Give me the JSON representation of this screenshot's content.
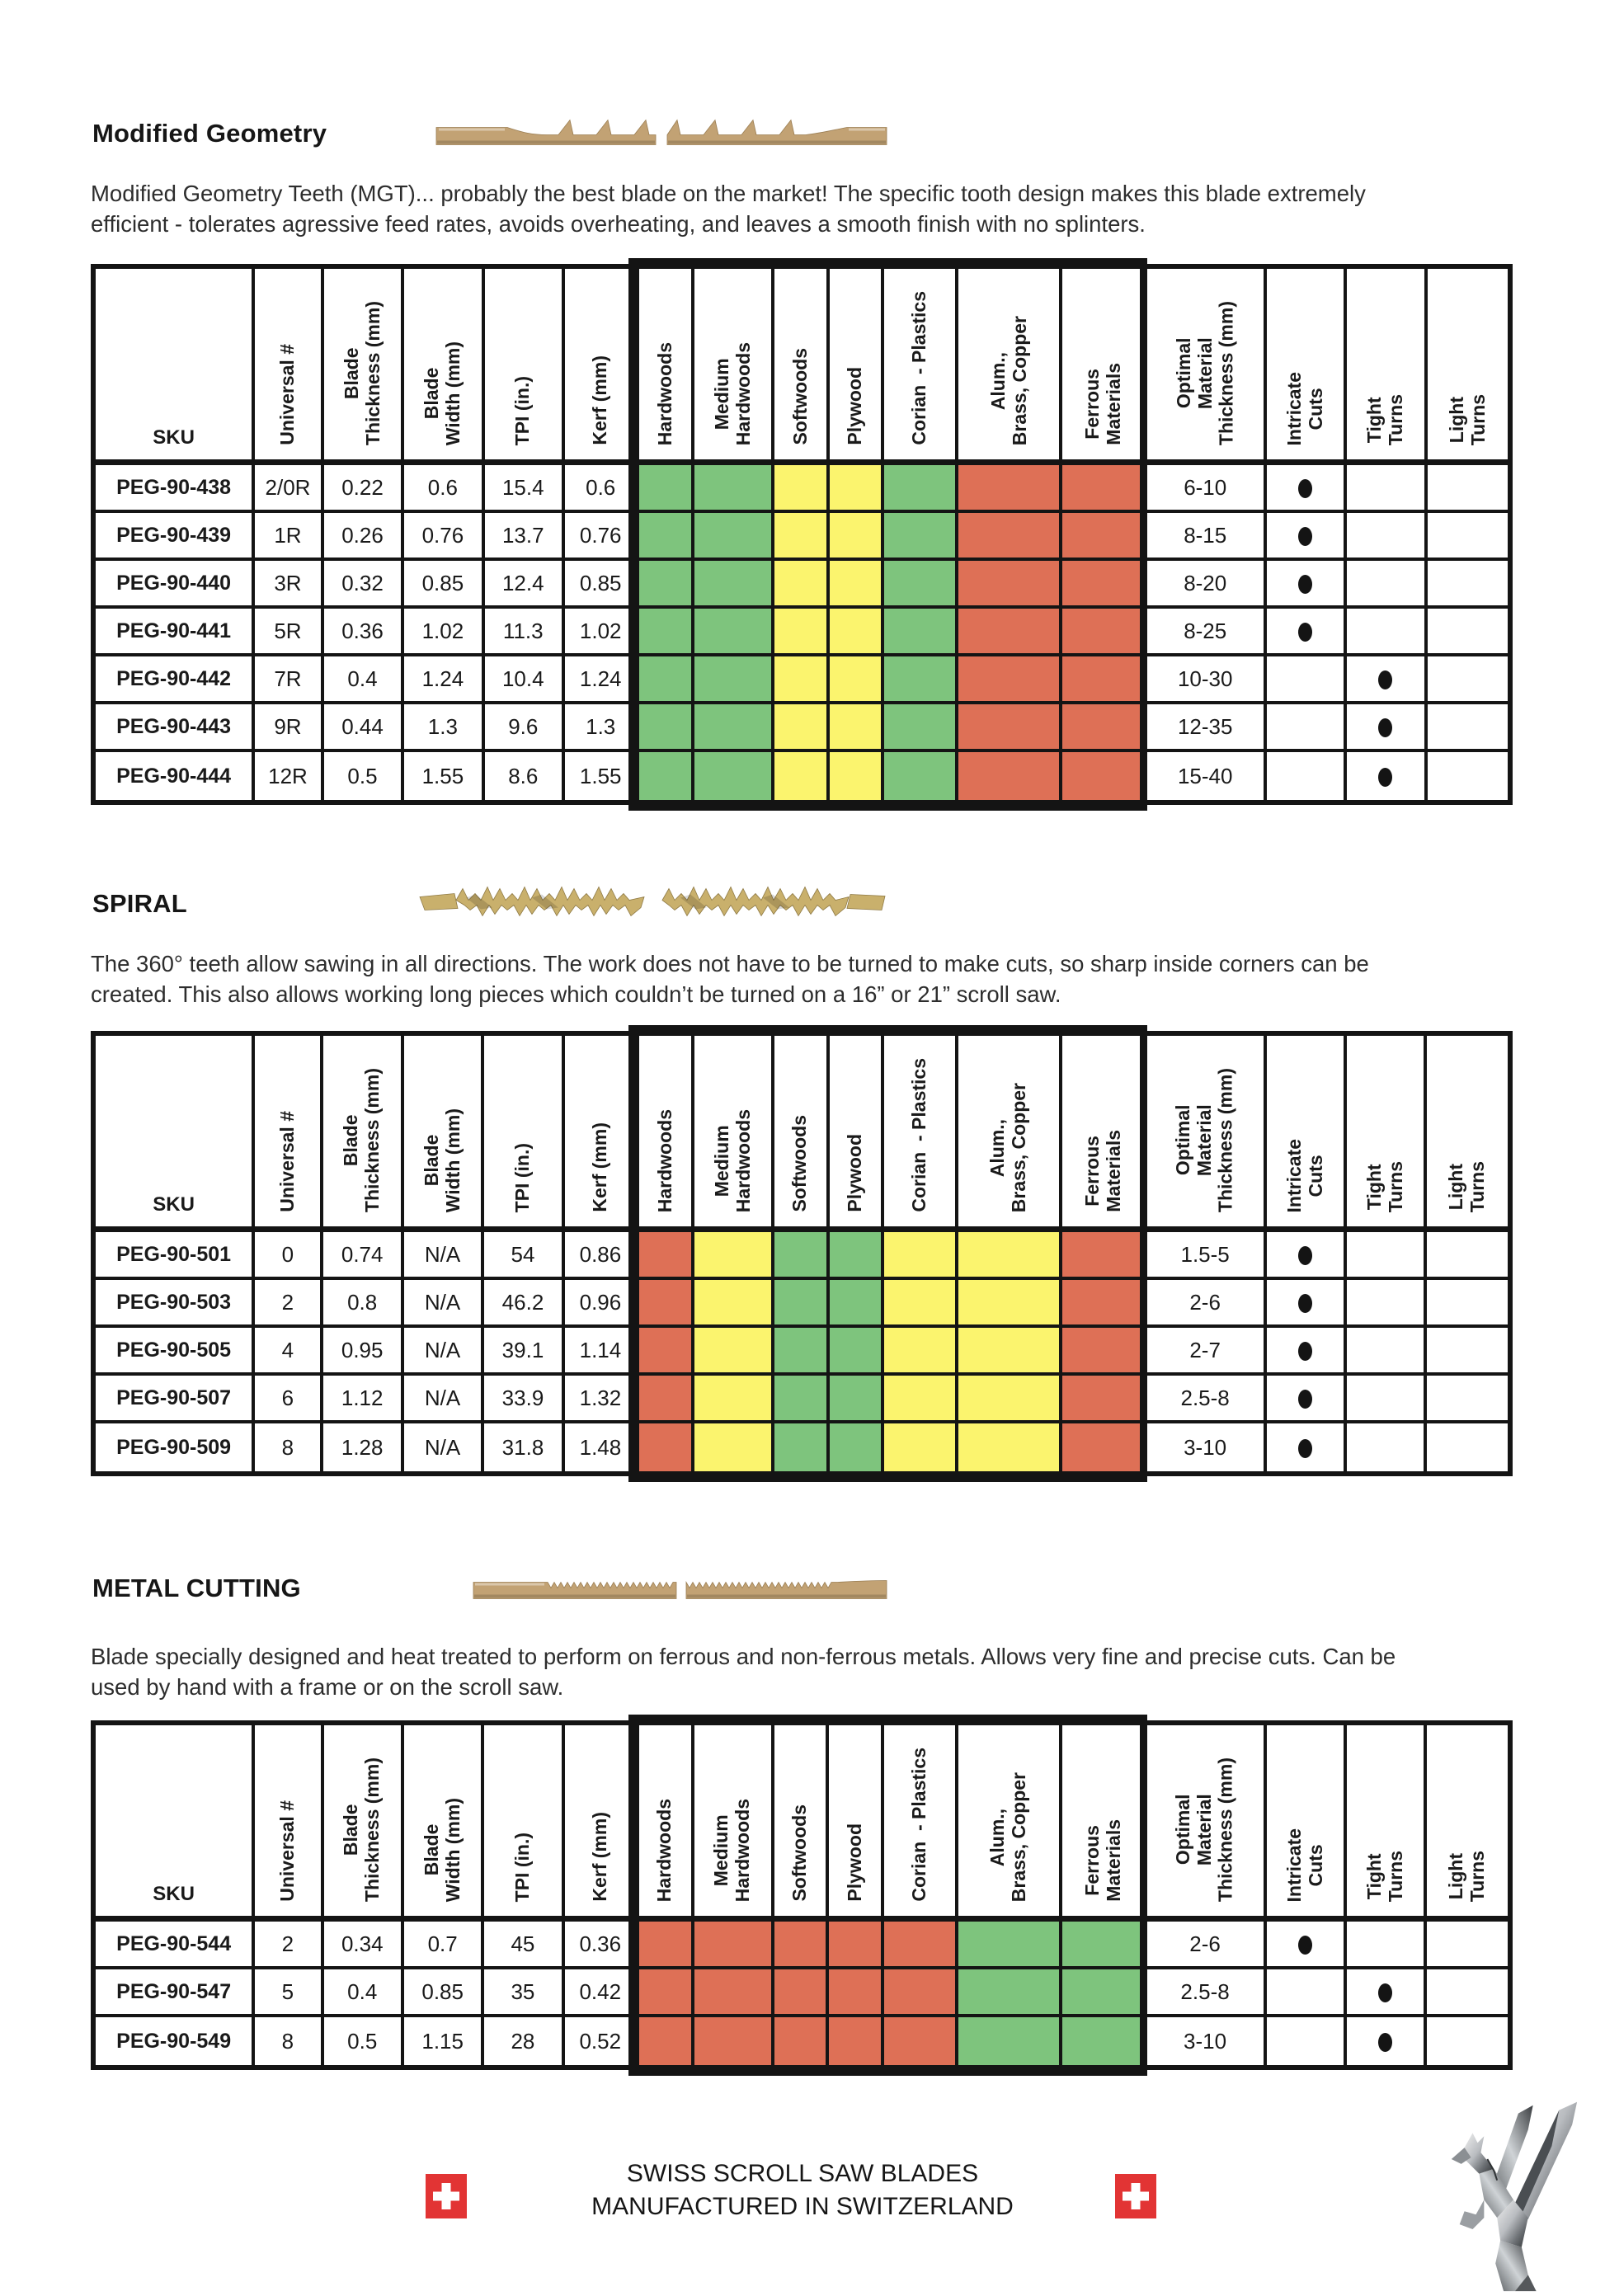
{
  "colors": {
    "green": "#7ec47d",
    "yellow": "#fbf46e",
    "red": "#de7056",
    "flag_red": "#e23434",
    "blade_tan": "#c2a274",
    "blade_gold": "#c9b06c"
  },
  "columns": [
    {
      "key": "sku",
      "label": "SKU"
    },
    {
      "key": "universal",
      "label": "Universal #"
    },
    {
      "key": "thickness",
      "label": "Blade\nThickness (mm)"
    },
    {
      "key": "width",
      "label": "Blade\nWidth (mm)"
    },
    {
      "key": "tpi",
      "label": "TPI (in.)"
    },
    {
      "key": "kerf",
      "label": "Kerf (mm)"
    },
    {
      "key": "m0",
      "label": "Hardwoods"
    },
    {
      "key": "m1",
      "label": "Medium\nHardwoods"
    },
    {
      "key": "m2",
      "label": "Softwoods"
    },
    {
      "key": "m3",
      "label": "Plywood"
    },
    {
      "key": "m4",
      "label": "Corian  - Plastics"
    },
    {
      "key": "m5",
      "label": "Alum.,\nBrass, Copper"
    },
    {
      "key": "m6",
      "label": "Ferrous\nMaterials"
    },
    {
      "key": "optimal",
      "label": "Optimal\nMaterial\nThickness (mm)"
    },
    {
      "key": "intricate",
      "label": "Intricate\nCuts"
    },
    {
      "key": "tight",
      "label": "Tight\nTurns"
    },
    {
      "key": "light",
      "label": "Light\nTurns"
    }
  ],
  "sections": [
    {
      "id": "modified-geometry",
      "title": "Modified Geometry",
      "blade": "mgt",
      "description_lines": [
        "Modified Geometry Teeth (MGT)... probably the best blade on the market! The specific tooth design makes this blade extremely",
        "efficient - tolerates agressive feed rates, avoids overheating, and leaves a smooth finish with no splinters."
      ],
      "materials": [
        "green",
        "green",
        "yellow",
        "yellow",
        "green",
        "red",
        "red"
      ],
      "rows": [
        {
          "sku": "PEG-90-438",
          "universal": "2/0R",
          "thickness": "0.22",
          "width": "0.6",
          "tpi": "15.4",
          "kerf": "0.6",
          "optimal": "6-10",
          "intricate": true,
          "tight": false,
          "light": false
        },
        {
          "sku": "PEG-90-439",
          "universal": "1R",
          "thickness": "0.26",
          "width": "0.76",
          "tpi": "13.7",
          "kerf": "0.76",
          "optimal": "8-15",
          "intricate": true,
          "tight": false,
          "light": false
        },
        {
          "sku": "PEG-90-440",
          "universal": "3R",
          "thickness": "0.32",
          "width": "0.85",
          "tpi": "12.4",
          "kerf": "0.85",
          "optimal": "8-20",
          "intricate": true,
          "tight": false,
          "light": false
        },
        {
          "sku": "PEG-90-441",
          "universal": "5R",
          "thickness": "0.36",
          "width": "1.02",
          "tpi": "11.3",
          "kerf": "1.02",
          "optimal": "8-25",
          "intricate": true,
          "tight": false,
          "light": false
        },
        {
          "sku": "PEG-90-442",
          "universal": "7R",
          "thickness": "0.4",
          "width": "1.24",
          "tpi": "10.4",
          "kerf": "1.24",
          "optimal": "10-30",
          "intricate": false,
          "tight": true,
          "light": false
        },
        {
          "sku": "PEG-90-443",
          "universal": "9R",
          "thickness": "0.44",
          "width": "1.3",
          "tpi": "9.6",
          "kerf": "1.3",
          "optimal": "12-35",
          "intricate": false,
          "tight": true,
          "light": false
        },
        {
          "sku": "PEG-90-444",
          "universal": "12R",
          "thickness": "0.5",
          "width": "1.55",
          "tpi": "8.6",
          "kerf": "1.55",
          "optimal": "15-40",
          "intricate": false,
          "tight": true,
          "light": false
        }
      ]
    },
    {
      "id": "spiral",
      "title": "SPIRAL",
      "blade": "spiral",
      "description_lines": [
        "The 360° teeth allow sawing in all directions. The work does not have to be turned to make cuts, so sharp inside corners can be",
        "created. This also allows working long pieces which couldn’t be turned on a 16” or 21” scroll saw."
      ],
      "materials": [
        "red",
        "yellow",
        "green",
        "green",
        "yellow",
        "yellow",
        "red"
      ],
      "rows": [
        {
          "sku": "PEG-90-501",
          "universal": "0",
          "thickness": "0.74",
          "width": "N/A",
          "tpi": "54",
          "kerf": "0.86",
          "optimal": "1.5-5",
          "intricate": true,
          "tight": false,
          "light": false
        },
        {
          "sku": "PEG-90-503",
          "universal": "2",
          "thickness": "0.8",
          "width": "N/A",
          "tpi": "46.2",
          "kerf": "0.96",
          "optimal": "2-6",
          "intricate": true,
          "tight": false,
          "light": false
        },
        {
          "sku": "PEG-90-505",
          "universal": "4",
          "thickness": "0.95",
          "width": "N/A",
          "tpi": "39.1",
          "kerf": "1.14",
          "optimal": "2-7",
          "intricate": true,
          "tight": false,
          "light": false
        },
        {
          "sku": "PEG-90-507",
          "universal": "6",
          "thickness": "1.12",
          "width": "N/A",
          "tpi": "33.9",
          "kerf": "1.32",
          "optimal": "2.5-8",
          "intricate": true,
          "tight": false,
          "light": false
        },
        {
          "sku": "PEG-90-509",
          "universal": "8",
          "thickness": "1.28",
          "width": "N/A",
          "tpi": "31.8",
          "kerf": "1.48",
          "optimal": "3-10",
          "intricate": true,
          "tight": false,
          "light": false
        }
      ]
    },
    {
      "id": "metal-cutting",
      "title": "METAL CUTTING",
      "blade": "metal",
      "description_lines": [
        "Blade specially designed and heat treated to perform on ferrous and non-ferrous metals. Allows very fine and precise cuts. Can be",
        "used by hand with a frame or on the scroll saw."
      ],
      "materials": [
        "red",
        "red",
        "red",
        "red",
        "red",
        "green",
        "green"
      ],
      "rows": [
        {
          "sku": "PEG-90-544",
          "universal": "2",
          "thickness": "0.34",
          "width": "0.7",
          "tpi": "45",
          "kerf": "0.36",
          "optimal": "2-6",
          "intricate": true,
          "tight": false,
          "light": false
        },
        {
          "sku": "PEG-90-547",
          "universal": "5",
          "thickness": "0.4",
          "width": "0.85",
          "tpi": "35",
          "kerf": "0.42",
          "optimal": "2.5-8",
          "intricate": false,
          "tight": true,
          "light": false
        },
        {
          "sku": "PEG-90-549",
          "universal": "8",
          "thickness": "0.5",
          "width": "1.15",
          "tpi": "28",
          "kerf": "0.52",
          "optimal": "3-10",
          "intricate": false,
          "tight": true,
          "light": false
        }
      ]
    }
  ],
  "footer": {
    "line1": "SWISS SCROLL SAW BLADES",
    "line2": "MANUFACTURED IN SWITZERLAND"
  }
}
